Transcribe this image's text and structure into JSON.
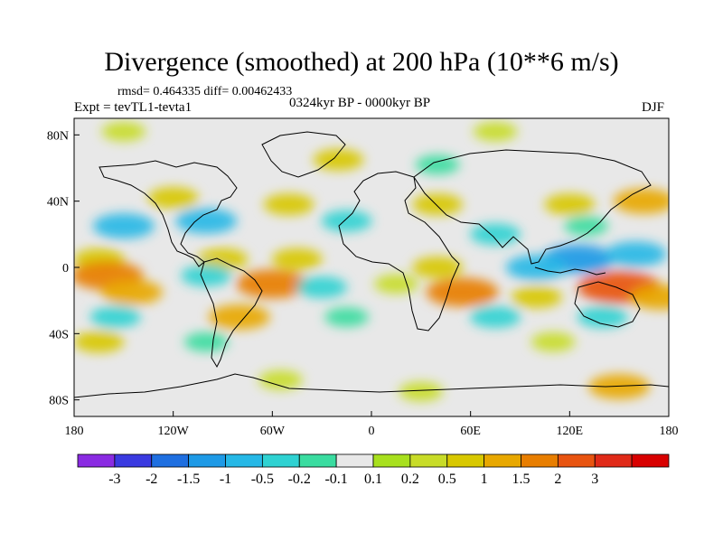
{
  "chart_data": {
    "type": "heatmap",
    "title": "Divergence (smoothed) at 200 hPa (10**6 m/s)",
    "stats": "rmsd= 0.464335 diff= 0.00462433",
    "expt_label": "Expt = tevTL1-tevta1",
    "period": "0324kyr BP - 0000kyr BP",
    "season": "DJF",
    "x_axis": {
      "range": [
        -180,
        180
      ],
      "ticks": [
        {
          "value": -180,
          "label": "180"
        },
        {
          "value": -120,
          "label": "120W"
        },
        {
          "value": -60,
          "label": "60W"
        },
        {
          "value": 0,
          "label": "0"
        },
        {
          "value": 60,
          "label": "60E"
        },
        {
          "value": 120,
          "label": "120E"
        },
        {
          "value": 180,
          "label": "180"
        }
      ]
    },
    "y_axis": {
      "range": [
        -90,
        90
      ],
      "ticks": [
        {
          "value": 80,
          "label": "80N"
        },
        {
          "value": 40,
          "label": "40N"
        },
        {
          "value": 0,
          "label": "0"
        },
        {
          "value": -40,
          "label": "40S"
        },
        {
          "value": -80,
          "label": "80S"
        }
      ]
    },
    "colorbar": {
      "colors": [
        "#8a2be2",
        "#3a3ae0",
        "#1f6fe0",
        "#1e9ae6",
        "#26b8e6",
        "#2fd2d2",
        "#3adca0",
        "#e8e8e8",
        "#a8e01e",
        "#c8dc28",
        "#d8c800",
        "#e8a800",
        "#e87e00",
        "#e85410",
        "#e02a18",
        "#d80000"
      ],
      "labels": [
        "-3",
        "-2",
        "-1.5",
        "-1",
        "-0.5",
        "-0.2",
        "-0.1",
        "0.1",
        "0.2",
        "0.5",
        "1",
        "1.5",
        "2",
        "3"
      ]
    },
    "anomalies": [
      {
        "lon": -150,
        "lat": 25,
        "value": -1.0
      },
      {
        "lon": -100,
        "lat": 28,
        "value": -1.0
      },
      {
        "lon": -15,
        "lat": 28,
        "value": -0.5
      },
      {
        "lon": 75,
        "lat": 20,
        "value": -0.5
      },
      {
        "lon": 130,
        "lat": 25,
        "value": -0.2
      },
      {
        "lon": -120,
        "lat": 42,
        "value": 0.5
      },
      {
        "lon": -50,
        "lat": 38,
        "value": 0.5
      },
      {
        "lon": 40,
        "lat": 38,
        "value": 0.5
      },
      {
        "lon": 120,
        "lat": 38,
        "value": 0.5
      },
      {
        "lon": 165,
        "lat": 40,
        "value": 1.0
      },
      {
        "lon": -165,
        "lat": 5,
        "value": 0.5
      },
      {
        "lon": -90,
        "lat": 5,
        "value": 0.5
      },
      {
        "lon": -45,
        "lat": 5,
        "value": 0.5
      },
      {
        "lon": 40,
        "lat": 0,
        "value": 0.5
      },
      {
        "lon": 125,
        "lat": 5,
        "value": -1.5
      },
      {
        "lon": 160,
        "lat": 8,
        "value": -1.0
      },
      {
        "lon": 100,
        "lat": 0,
        "value": -1.0
      },
      {
        "lon": -160,
        "lat": -5,
        "value": 1.5
      },
      {
        "lon": -145,
        "lat": -15,
        "value": 1.0
      },
      {
        "lon": -100,
        "lat": -5,
        "value": -0.5
      },
      {
        "lon": -60,
        "lat": -10,
        "value": 1.5
      },
      {
        "lon": -30,
        "lat": -12,
        "value": -0.5
      },
      {
        "lon": 15,
        "lat": -10,
        "value": 0.2
      },
      {
        "lon": 55,
        "lat": -15,
        "value": 1.5
      },
      {
        "lon": 100,
        "lat": -18,
        "value": 0.5
      },
      {
        "lon": 150,
        "lat": -12,
        "value": 2.0
      },
      {
        "lon": 175,
        "lat": -18,
        "value": 1.0
      },
      {
        "lon": -155,
        "lat": -30,
        "value": -0.5
      },
      {
        "lon": -80,
        "lat": -30,
        "value": 1.0
      },
      {
        "lon": -15,
        "lat": -30,
        "value": -0.2
      },
      {
        "lon": 75,
        "lat": -30,
        "value": -0.5
      },
      {
        "lon": 140,
        "lat": -30,
        "value": -0.5
      },
      {
        "lon": -165,
        "lat": -45,
        "value": 0.5
      },
      {
        "lon": -100,
        "lat": -45,
        "value": -0.2
      },
      {
        "lon": 110,
        "lat": -45,
        "value": 0.2
      },
      {
        "lon": -55,
        "lat": -68,
        "value": 0.2
      },
      {
        "lon": 30,
        "lat": -75,
        "value": 0.2
      },
      {
        "lon": 150,
        "lat": -72,
        "value": 1.0
      },
      {
        "lon": -20,
        "lat": 65,
        "value": 0.5
      },
      {
        "lon": 40,
        "lat": 62,
        "value": -0.2
      },
      {
        "lon": -150,
        "lat": 82,
        "value": 0.2
      },
      {
        "lon": 75,
        "lat": 82,
        "value": 0.2
      }
    ]
  }
}
